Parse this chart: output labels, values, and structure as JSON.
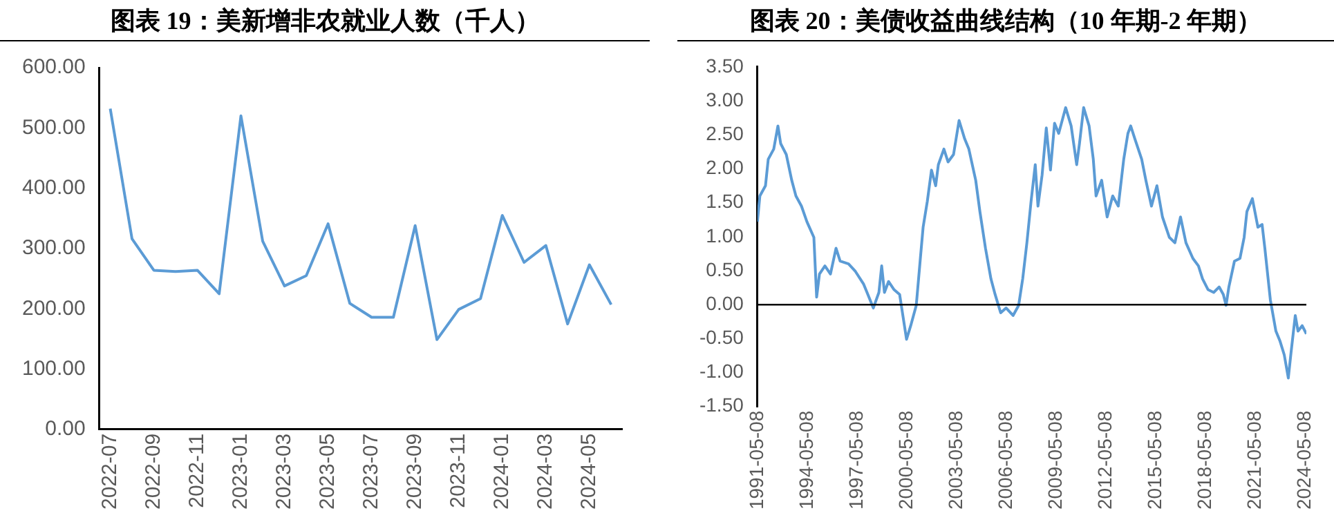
{
  "chart_data": [
    {
      "type": "line",
      "title": "图表 19：美新增非农就业人数（千人）",
      "categories": [
        "2022-07",
        null,
        "2022-09",
        null,
        "2022-11",
        null,
        "2023-01",
        null,
        "2023-03",
        null,
        "2023-05",
        null,
        "2023-07",
        null,
        "2023-09",
        null,
        "2023-11",
        null,
        "2024-01",
        null,
        "2024-03",
        null,
        "2024-05",
        null
      ],
      "series": [
        {
          "color": "#5b9bd5",
          "values": [
            532,
            316,
            264,
            262,
            264,
            225,
            520,
            312,
            238,
            255,
            341,
            209,
            186,
            186,
            338,
            149,
            199,
            217,
            355,
            277,
            305,
            175,
            273,
            207
          ]
        }
      ],
      "ylim": [
        0,
        600
      ],
      "yticks": [
        {
          "value": 0,
          "label": "0.00"
        },
        {
          "value": 100,
          "label": "100.00"
        },
        {
          "value": 200,
          "label": "200.00"
        },
        {
          "value": 300,
          "label": "300.00"
        },
        {
          "value": 400,
          "label": "400.00"
        },
        {
          "value": 500,
          "label": "500.00"
        },
        {
          "value": 600,
          "label": "600.00"
        }
      ],
      "marker": "none",
      "line_style": "solid"
    },
    {
      "type": "line",
      "title": "图表 20：美债收益曲线结构（10 年期-2 年期）",
      "x": [
        "1991-05-08",
        "1991-07",
        "1991-11",
        "1992-01",
        "1992-05",
        "1992-08",
        "1992-10",
        "1993-02",
        "1993-06",
        "1993-09",
        "1994-01",
        "1994-05",
        "1994-10",
        "1994-12",
        "1995-02",
        "1995-06",
        "1995-10",
        "1996-02",
        "1996-05",
        "1996-11",
        "1997-04",
        "1997-10",
        "1998-01",
        "1998-05",
        "1998-09",
        "1998-11",
        "1999-01",
        "1999-04",
        "1999-08",
        "1999-12",
        "2000-02",
        "2000-05",
        "2000-08",
        "2000-12",
        "2001-03",
        "2001-05",
        "2001-08",
        "2001-11",
        "2002-02",
        "2002-04",
        "2002-08",
        "2002-11",
        "2003-03",
        "2003-07",
        "2003-11",
        "2004-02",
        "2004-07",
        "2004-10",
        "2005-02",
        "2005-06",
        "2005-09",
        "2006-01",
        "2006-05",
        "2006-10",
        "2007-02",
        "2007-05",
        "2007-08",
        "2007-11",
        "2008-02",
        "2008-04",
        "2008-07",
        "2008-10",
        "2009-01",
        "2009-04",
        "2009-07",
        "2009-12",
        "2010-04",
        "2010-08",
        "2010-10",
        "2011-01",
        "2011-05",
        "2011-08",
        "2011-10",
        "2012-02",
        "2012-06",
        "2012-10",
        "2013-02",
        "2013-06",
        "2013-09",
        "2013-11",
        "2014-02",
        "2014-07",
        "2014-10",
        "2015-02",
        "2015-06",
        "2015-10",
        "2016-03",
        "2016-07",
        "2016-11",
        "2017-03",
        "2017-08",
        "2017-12",
        "2018-03",
        "2018-07",
        "2018-11",
        "2019-03",
        "2019-06",
        "2019-08",
        "2019-10",
        "2020-02",
        "2020-06",
        "2020-09",
        "2020-11",
        "2021-03",
        "2021-07",
        "2021-10",
        "2021-12",
        "2022-04",
        "2022-08",
        "2022-11",
        "2023-02",
        "2023-05",
        "2023-07",
        "2023-10",
        "2023-12",
        "2024-03",
        "2024-06"
      ],
      "series": [
        {
          "color": "#5b9bd5",
          "values": [
            1.22,
            1.6,
            1.75,
            2.14,
            2.29,
            2.63,
            2.37,
            2.21,
            1.83,
            1.6,
            1.45,
            1.22,
            0.99,
            0.11,
            0.45,
            0.57,
            0.45,
            0.83,
            0.64,
            0.6,
            0.49,
            0.3,
            0.15,
            -0.05,
            0.18,
            0.57,
            0.18,
            0.34,
            0.22,
            0.15,
            -0.12,
            -0.51,
            -0.31,
            -0.01,
            0.68,
            1.14,
            1.52,
            1.98,
            1.75,
            2.06,
            2.29,
            2.1,
            2.21,
            2.71,
            2.44,
            2.29,
            1.83,
            1.37,
            0.83,
            0.38,
            0.15,
            -0.12,
            -0.05,
            -0.16,
            -0.01,
            0.38,
            0.91,
            1.52,
            2.06,
            1.45,
            1.91,
            2.6,
            1.98,
            2.67,
            2.52,
            2.9,
            2.63,
            2.06,
            2.37,
            2.9,
            2.63,
            2.14,
            1.6,
            1.83,
            1.29,
            1.6,
            1.45,
            2.14,
            2.52,
            2.63,
            2.44,
            2.14,
            1.83,
            1.45,
            1.75,
            1.29,
            0.99,
            0.91,
            1.29,
            0.91,
            0.68,
            0.57,
            0.38,
            0.22,
            0.18,
            0.26,
            0.15,
            -0.01,
            0.26,
            0.64,
            0.68,
            0.99,
            1.37,
            1.56,
            1.14,
            1.18,
            0.83,
            0.07,
            -0.39,
            -0.54,
            -0.74,
            -1.08,
            -0.7,
            -0.16,
            -0.39,
            -0.31,
            -0.43
          ]
        }
      ],
      "xlim": [
        "1991-05-08",
        "2024-06"
      ],
      "xticks": [
        "1991-05-08",
        "1994-05-08",
        "1997-05-08",
        "2000-05-08",
        "2003-05-08",
        "2006-05-08",
        "2009-05-08",
        "2012-05-08",
        "2015-05-08",
        "2018-05-08",
        "2021-05-08",
        "2024-05-08"
      ],
      "ylim": [
        -1.5,
        3.5
      ],
      "yticks": [
        {
          "value": -1.5,
          "label": "-1.50"
        },
        {
          "value": -1,
          "label": "-1.00"
        },
        {
          "value": -0.5,
          "label": "-0.50"
        },
        {
          "value": 0,
          "label": "0.00"
        },
        {
          "value": 0.5,
          "label": "0.50"
        },
        {
          "value": 1,
          "label": "1.00"
        },
        {
          "value": 1.5,
          "label": "1.50"
        },
        {
          "value": 2,
          "label": "2.00"
        },
        {
          "value": 2.5,
          "label": "2.50"
        },
        {
          "value": 3,
          "label": "3.00"
        },
        {
          "value": 3.5,
          "label": "3.50"
        }
      ],
      "ref_lines": [
        {
          "axis": "y",
          "value": 0,
          "color": "#000000"
        }
      ],
      "marker": "none",
      "line_style": "solid"
    }
  ]
}
